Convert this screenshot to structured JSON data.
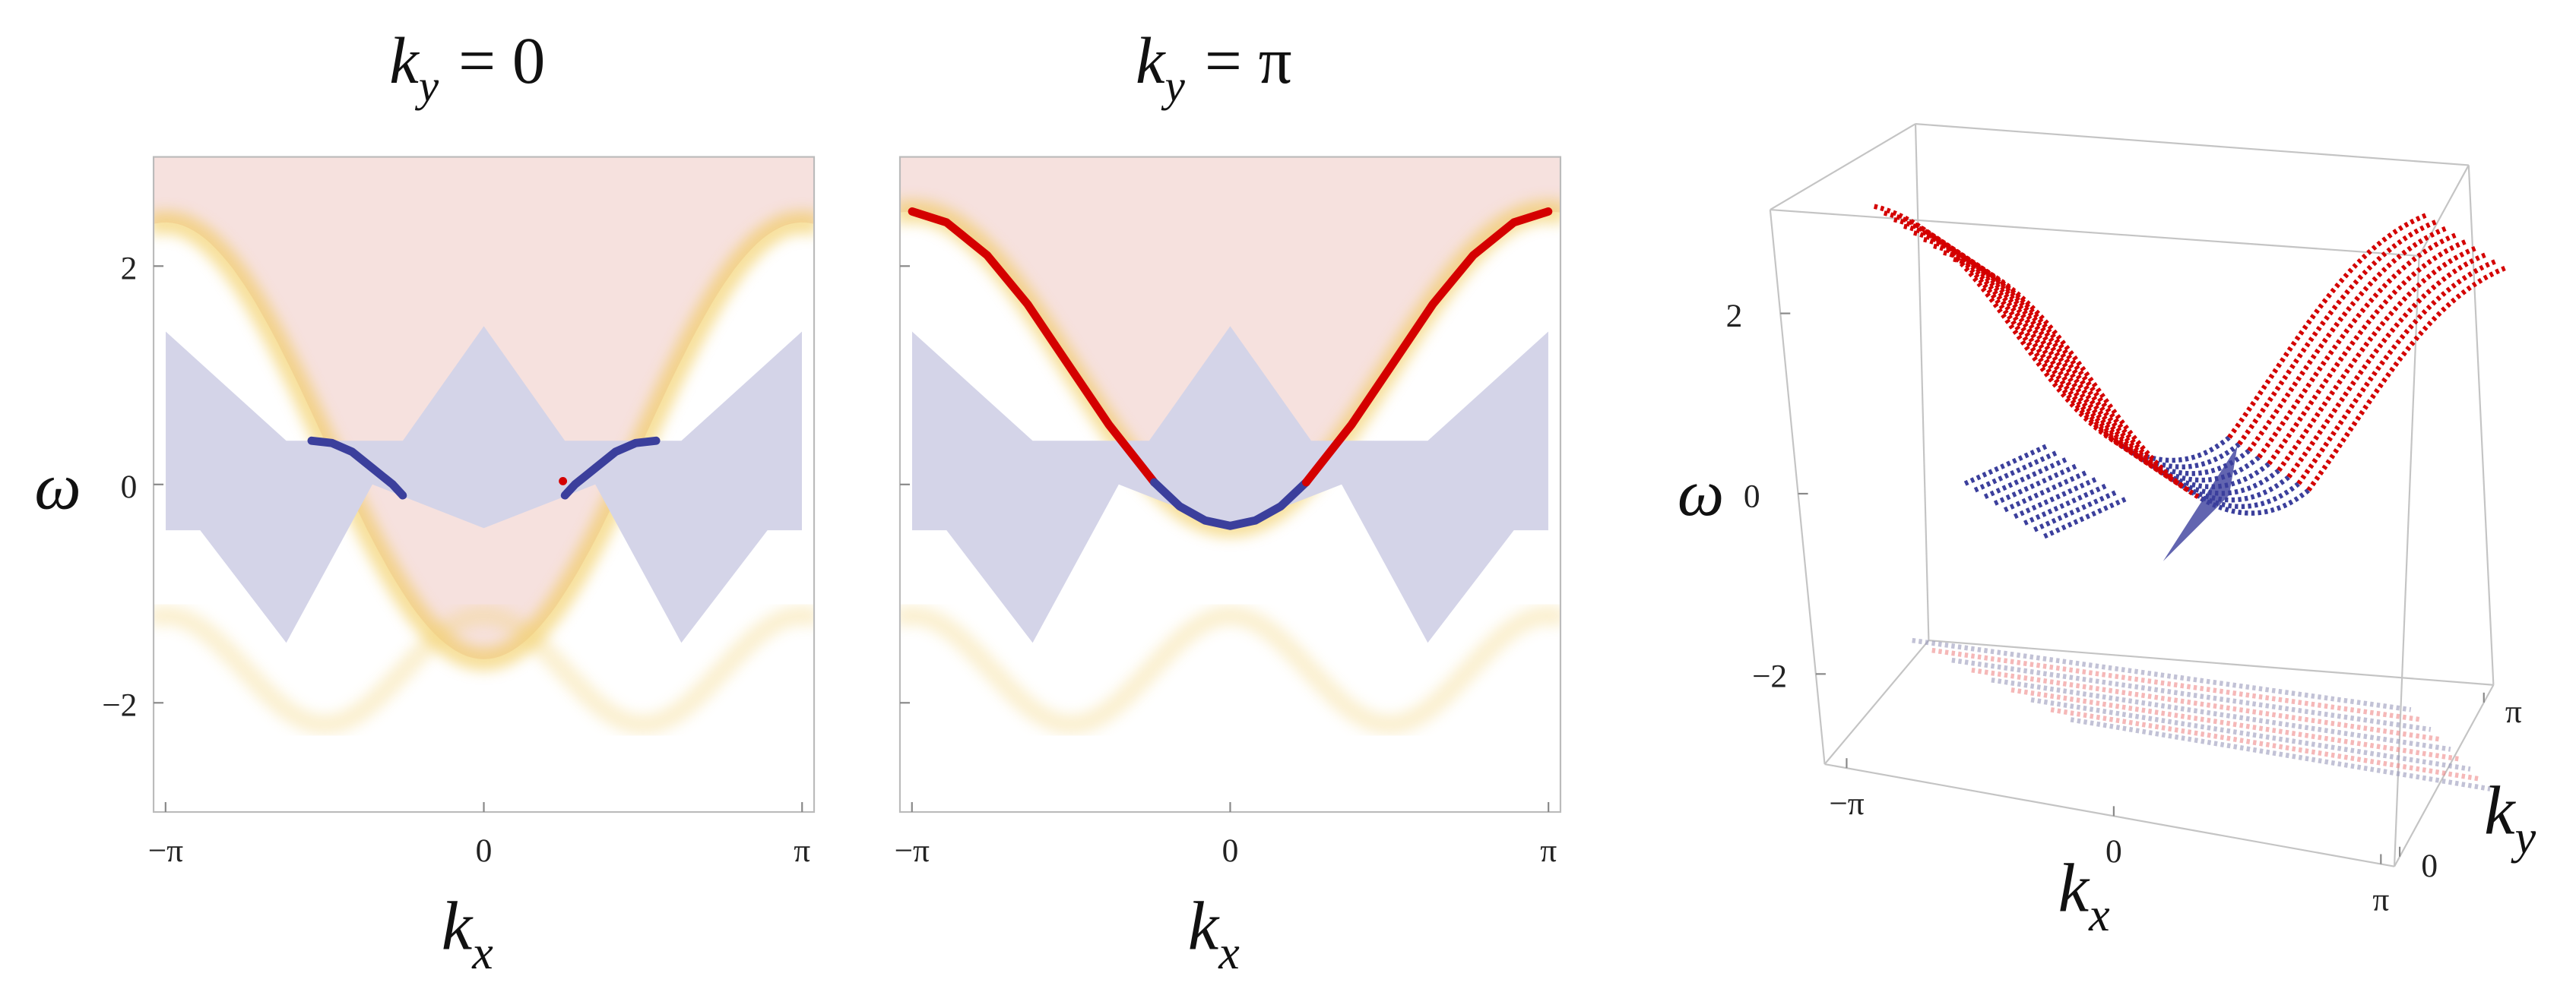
{
  "chart_data": [
    {
      "type": "line",
      "title": {
        "symbol": "k",
        "subscript": "y",
        "text": "= 0"
      },
      "x_label": {
        "symbol": "k",
        "subscript": "x"
      },
      "y_label": "ω",
      "xlim": [
        -3.26,
        3.26
      ],
      "ylim": [
        -3,
        3
      ],
      "xticks": [
        {
          "value": -3.1416,
          "label": "−π"
        },
        0,
        {
          "value": 3.1416,
          "label": "π"
        }
      ],
      "yticks": [
        {
          "value": -2,
          "label": "−2"
        },
        0,
        2
      ],
      "series": [
        {
          "color": "#3b3f9c",
          "x": [
            -1.7,
            -1.5,
            -1.3,
            -1.1,
            -0.9,
            -0.8
          ],
          "values": [
            0.4,
            0.38,
            0.3,
            0.15,
            0.0,
            -0.1
          ]
        },
        {
          "color": "#3b3f9c",
          "x": [
            0.8,
            0.9,
            1.1,
            1.3,
            1.5,
            1.7
          ],
          "values": [
            -0.1,
            0.0,
            0.15,
            0.3,
            0.38,
            0.4
          ]
        },
        {
          "color": "#d40000",
          "x": [
            0.78
          ],
          "values": [
            0.03
          ]
        }
      ]
    },
    {
      "type": "line",
      "title": {
        "symbol": "k",
        "subscript": "y",
        "text": "= π"
      },
      "x_label": {
        "symbol": "k",
        "subscript": "x"
      },
      "xlim": [
        -3.26,
        3.26
      ],
      "ylim": [
        -3,
        3
      ],
      "xticks": [
        {
          "value": -3.1416,
          "label": "−π"
        },
        0,
        {
          "value": 3.1416,
          "label": "π"
        }
      ],
      "yticks": [
        -2,
        0,
        2
      ],
      "series": [
        {
          "color": "#d40000",
          "x": [
            -3.14,
            -2.8,
            -2.4,
            -2.0,
            -1.6,
            -1.2,
            -0.75
          ],
          "values": [
            2.5,
            2.4,
            2.1,
            1.65,
            1.1,
            0.55,
            0.02
          ]
        },
        {
          "color": "#3b3f9c",
          "x": [
            -0.75,
            -0.5,
            -0.25,
            0,
            0.25,
            0.5,
            0.75
          ],
          "values": [
            0.02,
            -0.2,
            -0.33,
            -0.38,
            -0.33,
            -0.2,
            0.02
          ]
        },
        {
          "color": "#d40000",
          "x": [
            0.75,
            1.2,
            1.6,
            2.0,
            2.4,
            2.8,
            3.14
          ],
          "values": [
            0.02,
            0.55,
            1.1,
            1.65,
            2.1,
            2.4,
            2.5
          ]
        }
      ]
    },
    {
      "type": "surface3d",
      "x_label": {
        "symbol": "k",
        "subscript": "x"
      },
      "y_label": {
        "symbol": "k",
        "subscript": "y"
      },
      "z_label": "ω",
      "xlim": [
        -3.4,
        3.3
      ],
      "ylim": [
        -0.2,
        3.5
      ],
      "zlim": [
        -3,
        3.15
      ],
      "xticks": [
        {
          "value": -3.1416,
          "label": "−π"
        },
        0,
        {
          "value": 3.1416,
          "label": "π"
        }
      ],
      "yticks": [
        0,
        {
          "value": 3.1416,
          "label": "π"
        }
      ],
      "zticks": [
        {
          "value": -2,
          "label": "−2"
        },
        0,
        2
      ]
    }
  ]
}
